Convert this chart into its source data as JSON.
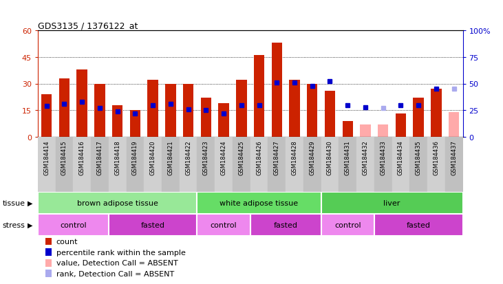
{
  "title": "GDS3135 / 1376122_at",
  "samples": [
    "GSM184414",
    "GSM184415",
    "GSM184416",
    "GSM184417",
    "GSM184418",
    "GSM184419",
    "GSM184420",
    "GSM184421",
    "GSM184422",
    "GSM184423",
    "GSM184424",
    "GSM184425",
    "GSM184426",
    "GSM184427",
    "GSM184428",
    "GSM184429",
    "GSM184430",
    "GSM184431",
    "GSM184432",
    "GSM184433",
    "GSM184434",
    "GSM184435",
    "GSM184436",
    "GSM184437"
  ],
  "counts": [
    24,
    33,
    38,
    30,
    18,
    15,
    32,
    30,
    30,
    22,
    19,
    32,
    46,
    53,
    32,
    30,
    26,
    9,
    7,
    7,
    13,
    22,
    27,
    14
  ],
  "absent_count": [
    false,
    false,
    false,
    false,
    false,
    false,
    false,
    false,
    false,
    false,
    false,
    false,
    false,
    false,
    false,
    false,
    false,
    false,
    true,
    true,
    false,
    false,
    false,
    true
  ],
  "ranks": [
    29,
    31,
    33,
    27,
    24,
    22,
    30,
    31,
    26,
    25,
    22,
    30,
    30,
    51,
    51,
    48,
    52,
    30,
    28,
    27,
    30,
    30,
    45,
    45
  ],
  "absent_rank": [
    false,
    false,
    false,
    false,
    false,
    false,
    false,
    false,
    false,
    false,
    false,
    false,
    false,
    false,
    false,
    false,
    false,
    false,
    false,
    true,
    false,
    false,
    false,
    true
  ],
  "tissue_defs": [
    {
      "label": "brown adipose tissue",
      "start": 0,
      "end": 9,
      "color": "#98E898"
    },
    {
      "label": "white adipose tissue",
      "start": 9,
      "end": 16,
      "color": "#66DD66"
    },
    {
      "label": "liver",
      "start": 16,
      "end": 24,
      "color": "#55CC55"
    }
  ],
  "stress_defs": [
    {
      "label": "control",
      "start": 0,
      "end": 4,
      "color": "#EE88EE"
    },
    {
      "label": "fasted",
      "start": 4,
      "end": 9,
      "color": "#CC44CC"
    },
    {
      "label": "control",
      "start": 9,
      "end": 12,
      "color": "#EE88EE"
    },
    {
      "label": "fasted",
      "start": 12,
      "end": 16,
      "color": "#CC44CC"
    },
    {
      "label": "control",
      "start": 16,
      "end": 19,
      "color": "#EE88EE"
    },
    {
      "label": "fasted",
      "start": 19,
      "end": 24,
      "color": "#CC44CC"
    }
  ],
  "ylim_left": [
    0,
    60
  ],
  "ylim_right": [
    0,
    100
  ],
  "yticks_left": [
    0,
    15,
    30,
    45,
    60
  ],
  "yticks_right": [
    0,
    25,
    50,
    75,
    100
  ],
  "bar_color": "#CC2200",
  "absent_bar_color": "#FFAAAA",
  "rank_color": "#0000CC",
  "absent_rank_color": "#AAAAEE",
  "gridline_vals": [
    15,
    30,
    45
  ],
  "legend_items": [
    {
      "label": "count",
      "color": "#CC2200"
    },
    {
      "label": "percentile rank within the sample",
      "color": "#0000CC"
    },
    {
      "label": "value, Detection Call = ABSENT",
      "color": "#FFAAAA"
    },
    {
      "label": "rank, Detection Call = ABSENT",
      "color": "#AAAAEE"
    }
  ]
}
